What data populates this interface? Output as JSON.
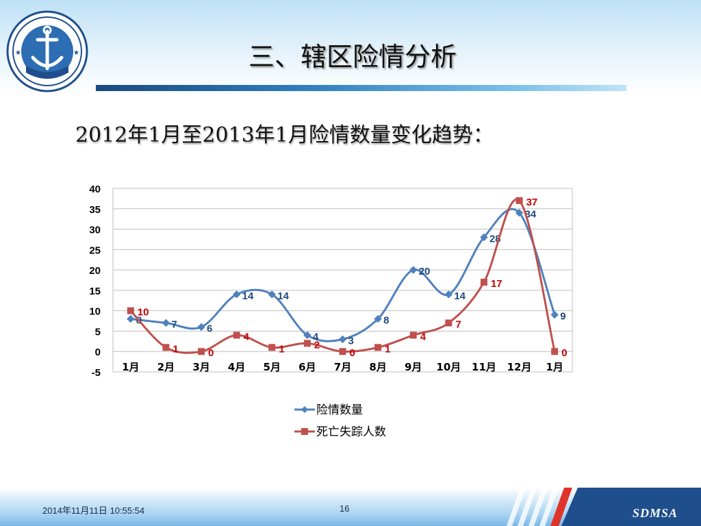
{
  "slide": {
    "title": "三、辖区险情分析",
    "subtitle": "2012年1月至2013年1月险情数量变化趋势：",
    "logo_text": "中 国 海 事 局",
    "logo_brand": "CHINA MSA"
  },
  "footer": {
    "datetime": "2014年11月11日  10:55:54",
    "page_number": "16",
    "brand": "SDMSA"
  },
  "colors": {
    "series1": "#4f81bd",
    "series2": "#c0504d",
    "label1": "#1f497d",
    "label2": "#c00000"
  },
  "chart_data": {
    "type": "line",
    "categories": [
      "1月",
      "2月",
      "3月",
      "4月",
      "5月",
      "6月",
      "7月",
      "8月",
      "9月",
      "10月",
      "11月",
      "12月",
      "1月"
    ],
    "ylim": [
      -5,
      40
    ],
    "yticks": [
      -5,
      0,
      5,
      10,
      15,
      20,
      25,
      30,
      35,
      40
    ],
    "grid": true,
    "smooth": true,
    "legend_position": "bottom",
    "series": [
      {
        "name": "险情数量",
        "marker": "diamond",
        "values": [
          8,
          7,
          6,
          14,
          14,
          4,
          3,
          8,
          20,
          14,
          28,
          34,
          9
        ]
      },
      {
        "name": "死亡失踪人数",
        "marker": "square",
        "values": [
          10,
          1,
          0,
          4,
          1,
          2,
          0,
          1,
          4,
          7,
          17,
          37,
          0
        ]
      }
    ]
  }
}
